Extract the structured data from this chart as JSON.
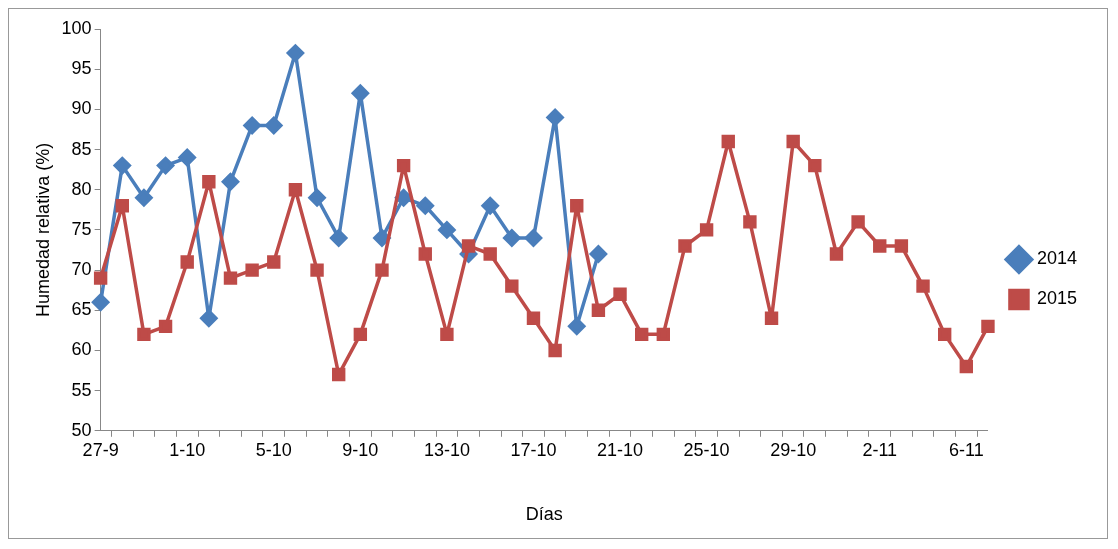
{
  "chart_data": {
    "type": "line",
    "xlabel": "Días",
    "ylabel": "Humedad relativa (%)",
    "categories": [
      "27-9",
      null,
      null,
      null,
      "1-10",
      null,
      null,
      null,
      "5-10",
      null,
      null,
      null,
      "9-10",
      null,
      null,
      null,
      "13-10",
      null,
      null,
      null,
      "17-10",
      null,
      null,
      null,
      "21-10",
      null,
      null,
      null,
      "25-10",
      null,
      null,
      null,
      "29-10",
      null,
      null,
      null,
      "2-11",
      null,
      null,
      null,
      "6-11",
      null
    ],
    "series": [
      {
        "name": "2014",
        "color": "#4a7ebb",
        "marker": "diamond",
        "values": [
          66,
          83,
          79,
          83,
          84,
          64,
          81,
          88,
          88,
          97,
          79,
          74,
          92,
          74,
          79,
          78,
          75,
          72,
          78,
          74,
          74,
          89,
          63,
          72,
          null,
          null,
          null,
          null,
          null,
          null,
          null,
          null,
          null,
          null,
          null,
          null,
          null,
          null,
          null,
          null,
          null,
          null
        ]
      },
      {
        "name": "2015",
        "color": "#be4b48",
        "marker": "square",
        "values": [
          69,
          78,
          62,
          63,
          71,
          81,
          69,
          70,
          71,
          80,
          70,
          57,
          62,
          70,
          83,
          72,
          62,
          73,
          72,
          68,
          64,
          60,
          78,
          65,
          67,
          62,
          62,
          73,
          75,
          86,
          76,
          64,
          86,
          83,
          72,
          76,
          73,
          73,
          68,
          62,
          58,
          63
        ]
      }
    ],
    "ylim": [
      50,
      100
    ],
    "yticks": [
      50,
      55,
      60,
      65,
      70,
      75,
      80,
      85,
      90,
      95,
      100
    ],
    "grid": false,
    "legend": "right"
  }
}
